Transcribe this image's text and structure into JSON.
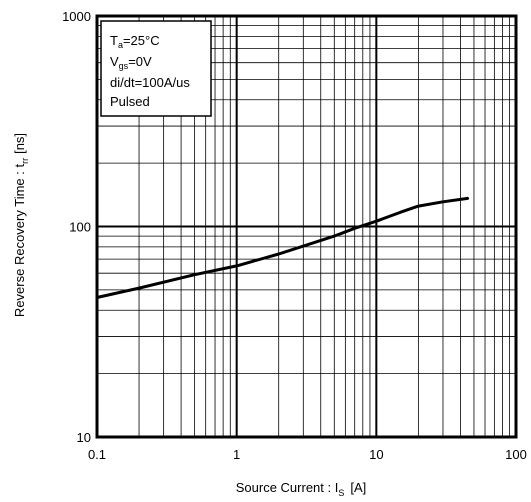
{
  "chart_data": {
    "type": "line",
    "xscale": "log",
    "yscale": "log",
    "xlim": [
      0.1,
      100
    ],
    "ylim": [
      10,
      1000
    ],
    "grid": true,
    "xlabel_main": "Source Current : I",
    "xlabel_sub": "S",
    "xlabel_unit": "[A]",
    "ylabel_main": "Reverse Recovery Time : t",
    "ylabel_sub": "rr",
    "ylabel_unit": "[ns]",
    "x_ticks": [
      "0.1",
      "1",
      "10",
      "100"
    ],
    "x_tick_values": [
      0.1,
      1,
      10,
      100
    ],
    "y_ticks": [
      "10",
      "100",
      "1000"
    ],
    "y_tick_values": [
      10,
      100,
      1000
    ],
    "conditions": [
      {
        "main": "T",
        "sub": "a",
        "rest": "=25°C"
      },
      {
        "main": "V",
        "sub": "gs",
        "rest": "=0V"
      },
      {
        "main": "di/dt=100A/us",
        "sub": "",
        "rest": ""
      },
      {
        "main": "Pulsed",
        "sub": "",
        "rest": ""
      }
    ],
    "series": [
      {
        "x": [
          0.1,
          0.2,
          0.5,
          1,
          2,
          5,
          7,
          10,
          15,
          20,
          30,
          45
        ],
        "y": [
          46,
          51,
          59,
          65,
          74,
          90,
          98,
          106,
          117,
          125,
          131,
          136
        ]
      }
    ]
  }
}
